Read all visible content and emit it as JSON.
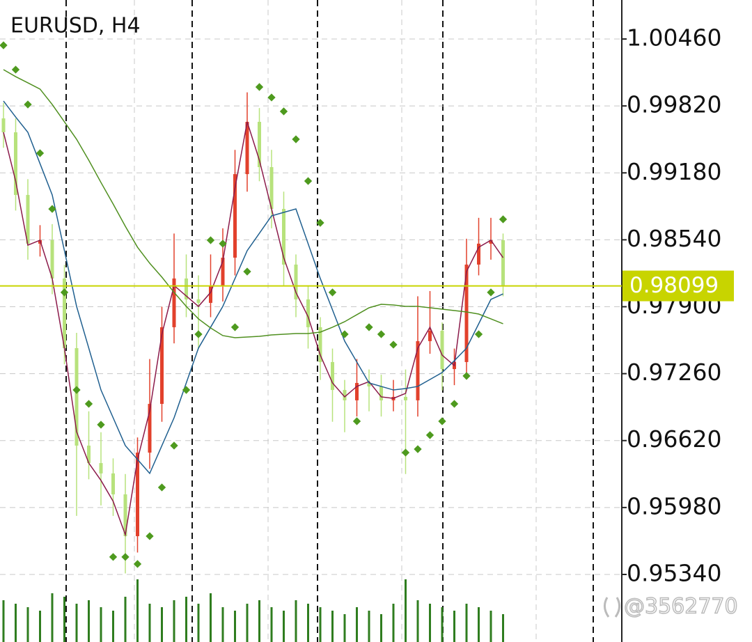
{
  "chart_data": {
    "type": "candlestick",
    "title": "EURUSD, H4",
    "open": [
      0.99701,
      0.99568,
      0.98969,
      0.98503,
      0.98536,
      0.9817,
      0.97504,
      0.96572,
      0.96405,
      0.96306,
      0.96106,
      0.95706,
      0.96505,
      0.96971,
      0.97704,
      0.9817,
      0.9797,
      0.97937,
      0.98103,
      0.98369,
      0.99168,
      0.99668,
      0.99235,
      0.98835,
      0.98303,
      0.9797,
      0.97704,
      0.97371,
      0.97104,
      0.97005,
      0.97171,
      0.97138,
      0.97005,
      0.97038,
      0.97005,
      0.97571,
      0.9767,
      0.97304,
      0.97371,
      0.98303,
      0.98503,
      0.98536
    ],
    "high": [
      0.9985,
      0.997,
      0.9912,
      0.9868,
      0.9869,
      0.983,
      0.9765,
      0.969,
      0.967,
      0.9645,
      0.963,
      0.9665,
      0.974,
      0.979,
      0.986,
      0.984,
      0.982,
      0.984,
      0.9865,
      0.994,
      0.9995,
      0.998,
      0.994,
      0.99,
      0.984,
      0.981,
      0.978,
      0.975,
      0.972,
      0.974,
      0.973,
      0.9725,
      0.972,
      0.973,
      0.98,
      0.9805,
      0.9775,
      0.975,
      0.9855,
      0.9875,
      0.9875,
      0.986
    ],
    "low": [
      0.9942,
      0.9882,
      0.9835,
      0.9838,
      0.9802,
      0.9735,
      0.959,
      0.9625,
      0.96,
      0.959,
      0.9535,
      0.9555,
      0.9635,
      0.968,
      0.9755,
      0.978,
      0.975,
      0.978,
      0.9795,
      0.982,
      0.99,
      0.991,
      0.9865,
      0.981,
      0.978,
      0.975,
      0.972,
      0.968,
      0.967,
      0.9685,
      0.969,
      0.9685,
      0.969,
      0.963,
      0.9685,
      0.9745,
      0.971,
      0.9715,
      0.9725,
      0.982,
      0.9835,
      0.98
    ],
    "close": [
      0.99568,
      0.98969,
      0.98503,
      0.98536,
      0.9817,
      0.97504,
      0.96572,
      0.96405,
      0.96306,
      0.96106,
      0.95706,
      0.96505,
      0.96971,
      0.97704,
      0.9817,
      0.9797,
      0.97937,
      0.98103,
      0.98369,
      0.99168,
      0.99668,
      0.99235,
      0.98835,
      0.98303,
      0.9797,
      0.97704,
      0.97371,
      0.97104,
      0.97005,
      0.97171,
      0.97138,
      0.97005,
      0.97038,
      0.97005,
      0.97571,
      0.9767,
      0.97304,
      0.97371,
      0.98303,
      0.98503,
      0.98536,
      0.98099
    ],
    "up_color": "#e2412c",
    "down_color": "#b7e27c",
    "ylim": [
      0.94694,
      1.00833
    ],
    "yticks": [
      {
        "value": 1.0046,
        "label": "1.00460"
      },
      {
        "value": 0.9982,
        "label": "0.99820"
      },
      {
        "value": 0.9918,
        "label": "0.99180"
      },
      {
        "value": 0.9854,
        "label": "0.98540"
      },
      {
        "value": 0.979,
        "label": "0.97900"
      },
      {
        "value": 0.9726,
        "label": "0.97260"
      },
      {
        "value": 0.9662,
        "label": "0.96620"
      },
      {
        "value": 0.9598,
        "label": "0.95980"
      },
      {
        "value": 0.9534,
        "label": "0.95340"
      }
    ],
    "grid": true,
    "series": [
      {
        "color": "#8b1a4a",
        "style": "line",
        "values": [
          0.99568,
          0.99102,
          0.98489,
          0.98536,
          0.9817,
          0.97504,
          0.96705,
          0.96405,
          0.96239,
          0.96039,
          0.9572,
          0.96439,
          0.96905,
          0.97637,
          0.98103,
          0.98003,
          0.97903,
          0.98037,
          0.98336,
          0.99035,
          0.99668,
          0.99301,
          0.98835,
          0.98369,
          0.98037,
          0.97804,
          0.97437,
          0.97171,
          0.97038,
          0.97138,
          0.97184,
          0.97038,
          0.97024,
          0.97071,
          0.97504,
          0.97704,
          0.97437,
          0.97337,
          0.98236,
          0.98469,
          0.98536,
          0.98369
        ]
      },
      {
        "color": "#1f5f8f",
        "style": "line",
        "values": [
          0.99867,
          0.99714,
          0.99568,
          0.99268,
          0.98969,
          0.98436,
          0.97903,
          0.97504,
          0.97104,
          0.96838,
          0.96572,
          0.96439,
          0.96306,
          0.96572,
          0.96838,
          0.97171,
          0.97504,
          0.97704,
          0.97903,
          0.9817,
          0.98436,
          0.98602,
          0.98769,
          0.98802,
          0.98835,
          0.98503,
          0.9817,
          0.9787,
          0.97571,
          0.97371,
          0.97171,
          0.97138,
          0.97104,
          0.97118,
          0.97138,
          0.97204,
          0.97271,
          0.97384,
          0.97504,
          0.97737,
          0.9797,
          0.98023
        ]
      },
      {
        "color": "#4f8f1f",
        "style": "line",
        "values": [
          1.00167,
          1.001,
          1.00041,
          0.99981,
          0.99834,
          0.99668,
          0.99501,
          0.99301,
          0.99088,
          0.98882,
          0.98669,
          0.98469,
          0.98316,
          0.98183,
          0.98037,
          0.97903,
          0.97784,
          0.97697,
          0.97624,
          0.97604,
          0.9761,
          0.97617,
          0.9763,
          0.97637,
          0.97644,
          0.97644,
          0.97657,
          0.97704,
          0.97757,
          0.97824,
          0.9789,
          0.97923,
          0.97917,
          0.97903,
          0.97903,
          0.9789,
          0.97877,
          0.97863,
          0.9785,
          0.9783,
          0.97784,
          0.97737
        ]
      },
      {
        "color": "#4e9a1e",
        "style": "dots",
        "values": [
          1.004,
          1.00167,
          0.99834,
          0.99368,
          0.98835,
          0.98037,
          0.97104,
          0.96971,
          0.96772,
          0.95507,
          0.95507,
          0.9544,
          0.95706,
          0.96172,
          0.96572,
          0.97104,
          0.97637,
          0.98536,
          0.98503,
          0.97704,
          0.98236,
          1.00001,
          0.99901,
          0.99768,
          0.99501,
          0.99102,
          0.98702,
          0.98037,
          0.97637,
          0.96805,
          0.97704,
          0.97637,
          0.97537,
          0.96505,
          0.96538,
          0.96672,
          0.96805,
          0.96971,
          0.97238,
          0.97637,
          0.98037,
          0.98736
        ]
      }
    ],
    "volume": {
      "color": "#2f7d1f",
      "ylim": [
        0,
        100
      ],
      "values": [
        60,
        55,
        50,
        45,
        70,
        65,
        55,
        60,
        50,
        45,
        65,
        90,
        55,
        50,
        60,
        65,
        55,
        70,
        50,
        45,
        55,
        60,
        50,
        45,
        60,
        55,
        50,
        45,
        40,
        50,
        45,
        40,
        55,
        90,
        60,
        55,
        50,
        45,
        55,
        50,
        45,
        40
      ]
    },
    "current_price": {
      "value": 0.98099,
      "label": "0.98099",
      "color": "#c8d400"
    },
    "watermark": "@3562770"
  }
}
